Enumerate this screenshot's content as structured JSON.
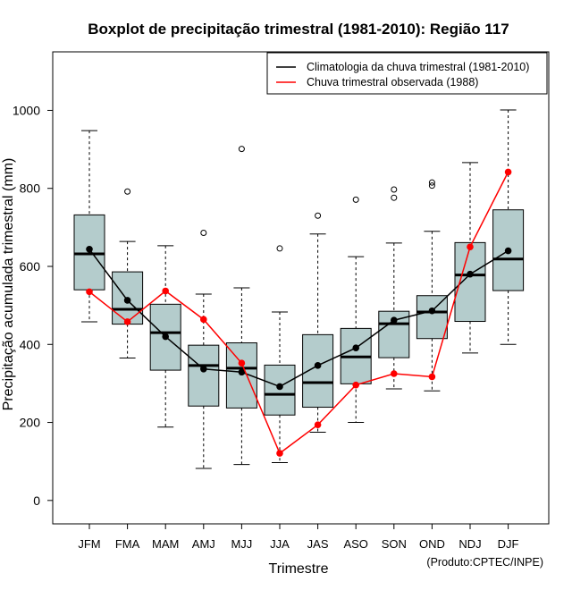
{
  "chart_data": {
    "type": "boxplot",
    "title": "Boxplot de precipitação trimestral (1981-2010): Região 117",
    "xlabel": "Trimestre",
    "ylabel": "Precipitação acumulada trimestral (mm)",
    "credit": "(Produto:CPTEC/INPE)",
    "ylim": [
      -60,
      1150
    ],
    "yticks": [
      0,
      200,
      400,
      600,
      800,
      1000
    ],
    "categories": [
      "JFM",
      "FMA",
      "MAM",
      "AMJ",
      "MJJ",
      "JJA",
      "JAS",
      "ASO",
      "SON",
      "OND",
      "NDJ",
      "DJF"
    ],
    "boxes": [
      {
        "whisker_low": 458,
        "q1": 540,
        "median": 632,
        "q3": 732,
        "whisker_high": 948,
        "outliers": []
      },
      {
        "whisker_low": 365,
        "q1": 452,
        "median": 490,
        "q3": 586,
        "whisker_high": 664,
        "outliers": [
          792
        ]
      },
      {
        "whisker_low": 188,
        "q1": 334,
        "median": 430,
        "q3": 503,
        "whisker_high": 653,
        "outliers": []
      },
      {
        "whisker_low": 82,
        "q1": 242,
        "median": 346,
        "q3": 398,
        "whisker_high": 529,
        "outliers": [
          686
        ]
      },
      {
        "whisker_low": 92,
        "q1": 237,
        "median": 339,
        "q3": 404,
        "whisker_high": 545,
        "outliers": [
          901
        ]
      },
      {
        "whisker_low": 97,
        "q1": 219,
        "median": 272,
        "q3": 347,
        "whisker_high": 483,
        "outliers": [
          646
        ]
      },
      {
        "whisker_low": 175,
        "q1": 239,
        "median": 302,
        "q3": 425,
        "whisker_high": 683,
        "outliers": [
          730
        ]
      },
      {
        "whisker_low": 200,
        "q1": 299,
        "median": 368,
        "q3": 441,
        "whisker_high": 625,
        "outliers": [
          771
        ]
      },
      {
        "whisker_low": 286,
        "q1": 366,
        "median": 453,
        "q3": 485,
        "whisker_high": 660,
        "outliers": [
          776,
          797
        ]
      },
      {
        "whisker_low": 281,
        "q1": 415,
        "median": 483,
        "q3": 525,
        "whisker_high": 690,
        "outliers": [
          807,
          815
        ]
      },
      {
        "whisker_low": 378,
        "q1": 459,
        "median": 578,
        "q3": 661,
        "whisker_high": 866,
        "outliers": []
      },
      {
        "whisker_low": 400,
        "q1": 538,
        "median": 619,
        "q3": 745,
        "whisker_high": 1001,
        "outliers": []
      }
    ],
    "series": [
      {
        "name": "Climatologia da chuva trimestral (1981-2010)",
        "color": "#000000",
        "values": [
          644,
          513,
          420,
          337,
          329,
          292,
          346,
          391,
          462,
          486,
          580,
          640
        ]
      },
      {
        "name": "Chuva trimestral observada (1988)",
        "color": "#ff0000",
        "values": [
          535,
          458,
          537,
          464,
          352,
          121,
          194,
          296,
          325,
          317,
          650,
          842
        ]
      }
    ],
    "box_fill": "#b4cccc",
    "legend_position": "top-right",
    "grid": false
  }
}
